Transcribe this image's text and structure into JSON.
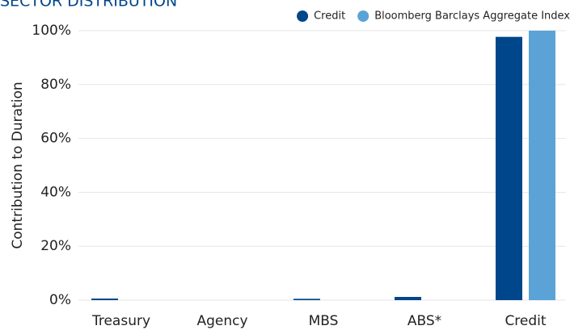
{
  "chart_data": {
    "type": "bar",
    "title": "SECTOR DISTRIBUTION",
    "y_label": "Contribution to Duration",
    "categories": [
      "Treasury",
      "Agency",
      "MBS",
      "ABS*",
      "Credit"
    ],
    "series": [
      {
        "name": "Credit",
        "color": "#00468b",
        "values": [
          0.6,
          0,
          0.5,
          1.2,
          97.7
        ]
      },
      {
        "name": "Bloomberg Barclays Aggregate Index",
        "color": "#5ba3d6",
        "values": [
          0,
          0,
          0,
          0,
          100
        ]
      }
    ],
    "ylim": [
      0,
      100
    ],
    "yticks": [
      {
        "value": 0,
        "label": "0%"
      },
      {
        "value": 20,
        "label": "20%"
      },
      {
        "value": 40,
        "label": "40%"
      },
      {
        "value": 60,
        "label": "60%"
      },
      {
        "value": 80,
        "label": "80%"
      },
      {
        "value": 100,
        "label": "100%"
      }
    ],
    "grid": true,
    "legend": "top-right"
  }
}
